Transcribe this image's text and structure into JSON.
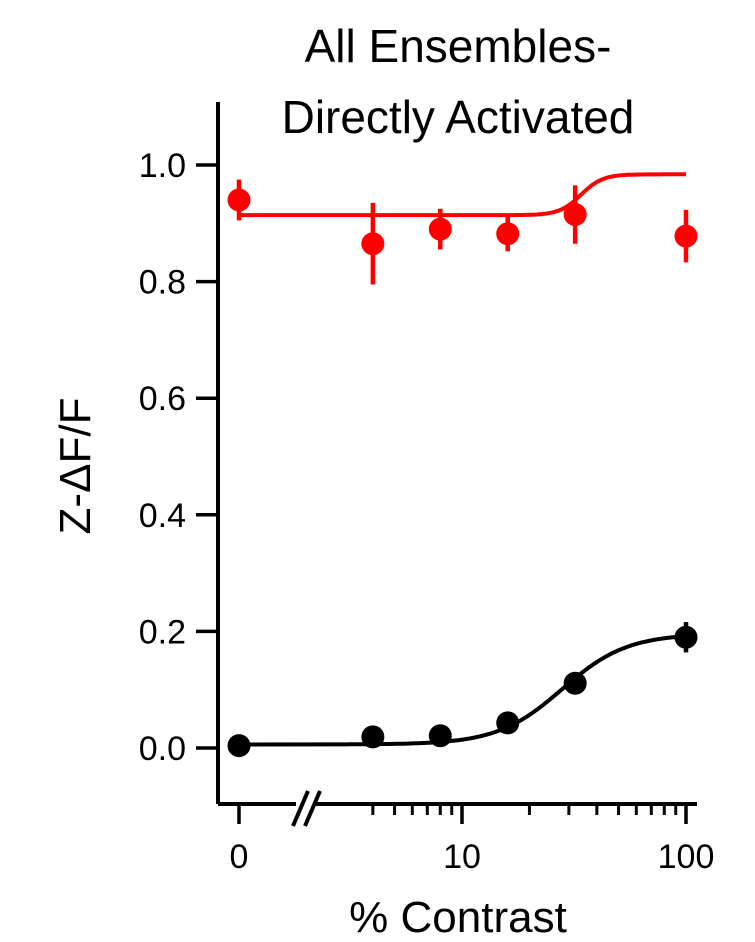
{
  "chart_data": {
    "type": "scatter",
    "title_lines": [
      "All Ensembles-",
      "Directly Activated"
    ],
    "xlabel": "% Contrast",
    "ylabel": "Z-ΔF/F",
    "x_scale": "log",
    "x_ticks": [
      {
        "value": 0,
        "label": "0"
      },
      {
        "value": 10,
        "label": "10"
      },
      {
        "value": 100,
        "label": "100"
      }
    ],
    "x_axis_break": true,
    "y_ticks": [
      {
        "value": 0.0,
        "label": "0.0"
      },
      {
        "value": 0.2,
        "label": "0.2"
      },
      {
        "value": 0.4,
        "label": "0.4"
      },
      {
        "value": 0.6,
        "label": "0.6"
      },
      {
        "value": 0.8,
        "label": "0.8"
      },
      {
        "value": 1.0,
        "label": "1.0"
      }
    ],
    "ylim": [
      -0.1,
      1.1
    ],
    "series": [
      {
        "color": "#ff0000",
        "points": [
          {
            "x": 0,
            "y": 0.94,
            "err": 0.035
          },
          {
            "x": 4,
            "y": 0.865,
            "err": 0.07
          },
          {
            "x": 8,
            "y": 0.89,
            "err": 0.035
          },
          {
            "x": 16,
            "y": 0.882,
            "err": 0.03
          },
          {
            "x": 32,
            "y": 0.915,
            "err": 0.05
          },
          {
            "x": 100,
            "y": 0.878,
            "err": 0.045
          }
        ],
        "fit": {
          "base": 0.914,
          "amp": 0.07,
          "c50": 34,
          "n": 9
        }
      },
      {
        "color": "#000000",
        "points": [
          {
            "x": 0,
            "y": 0.004,
            "err": 0.004
          },
          {
            "x": 4,
            "y": 0.019,
            "err": 0.006
          },
          {
            "x": 8,
            "y": 0.021,
            "err": 0.006
          },
          {
            "x": 16,
            "y": 0.043,
            "err": 0.008
          },
          {
            "x": 32,
            "y": 0.111,
            "err": 0.016
          },
          {
            "x": 100,
            "y": 0.19,
            "err": 0.026
          }
        ],
        "fit": {
          "base": 0.006,
          "amp": 0.19,
          "c50": 28,
          "n": 3
        }
      }
    ]
  }
}
